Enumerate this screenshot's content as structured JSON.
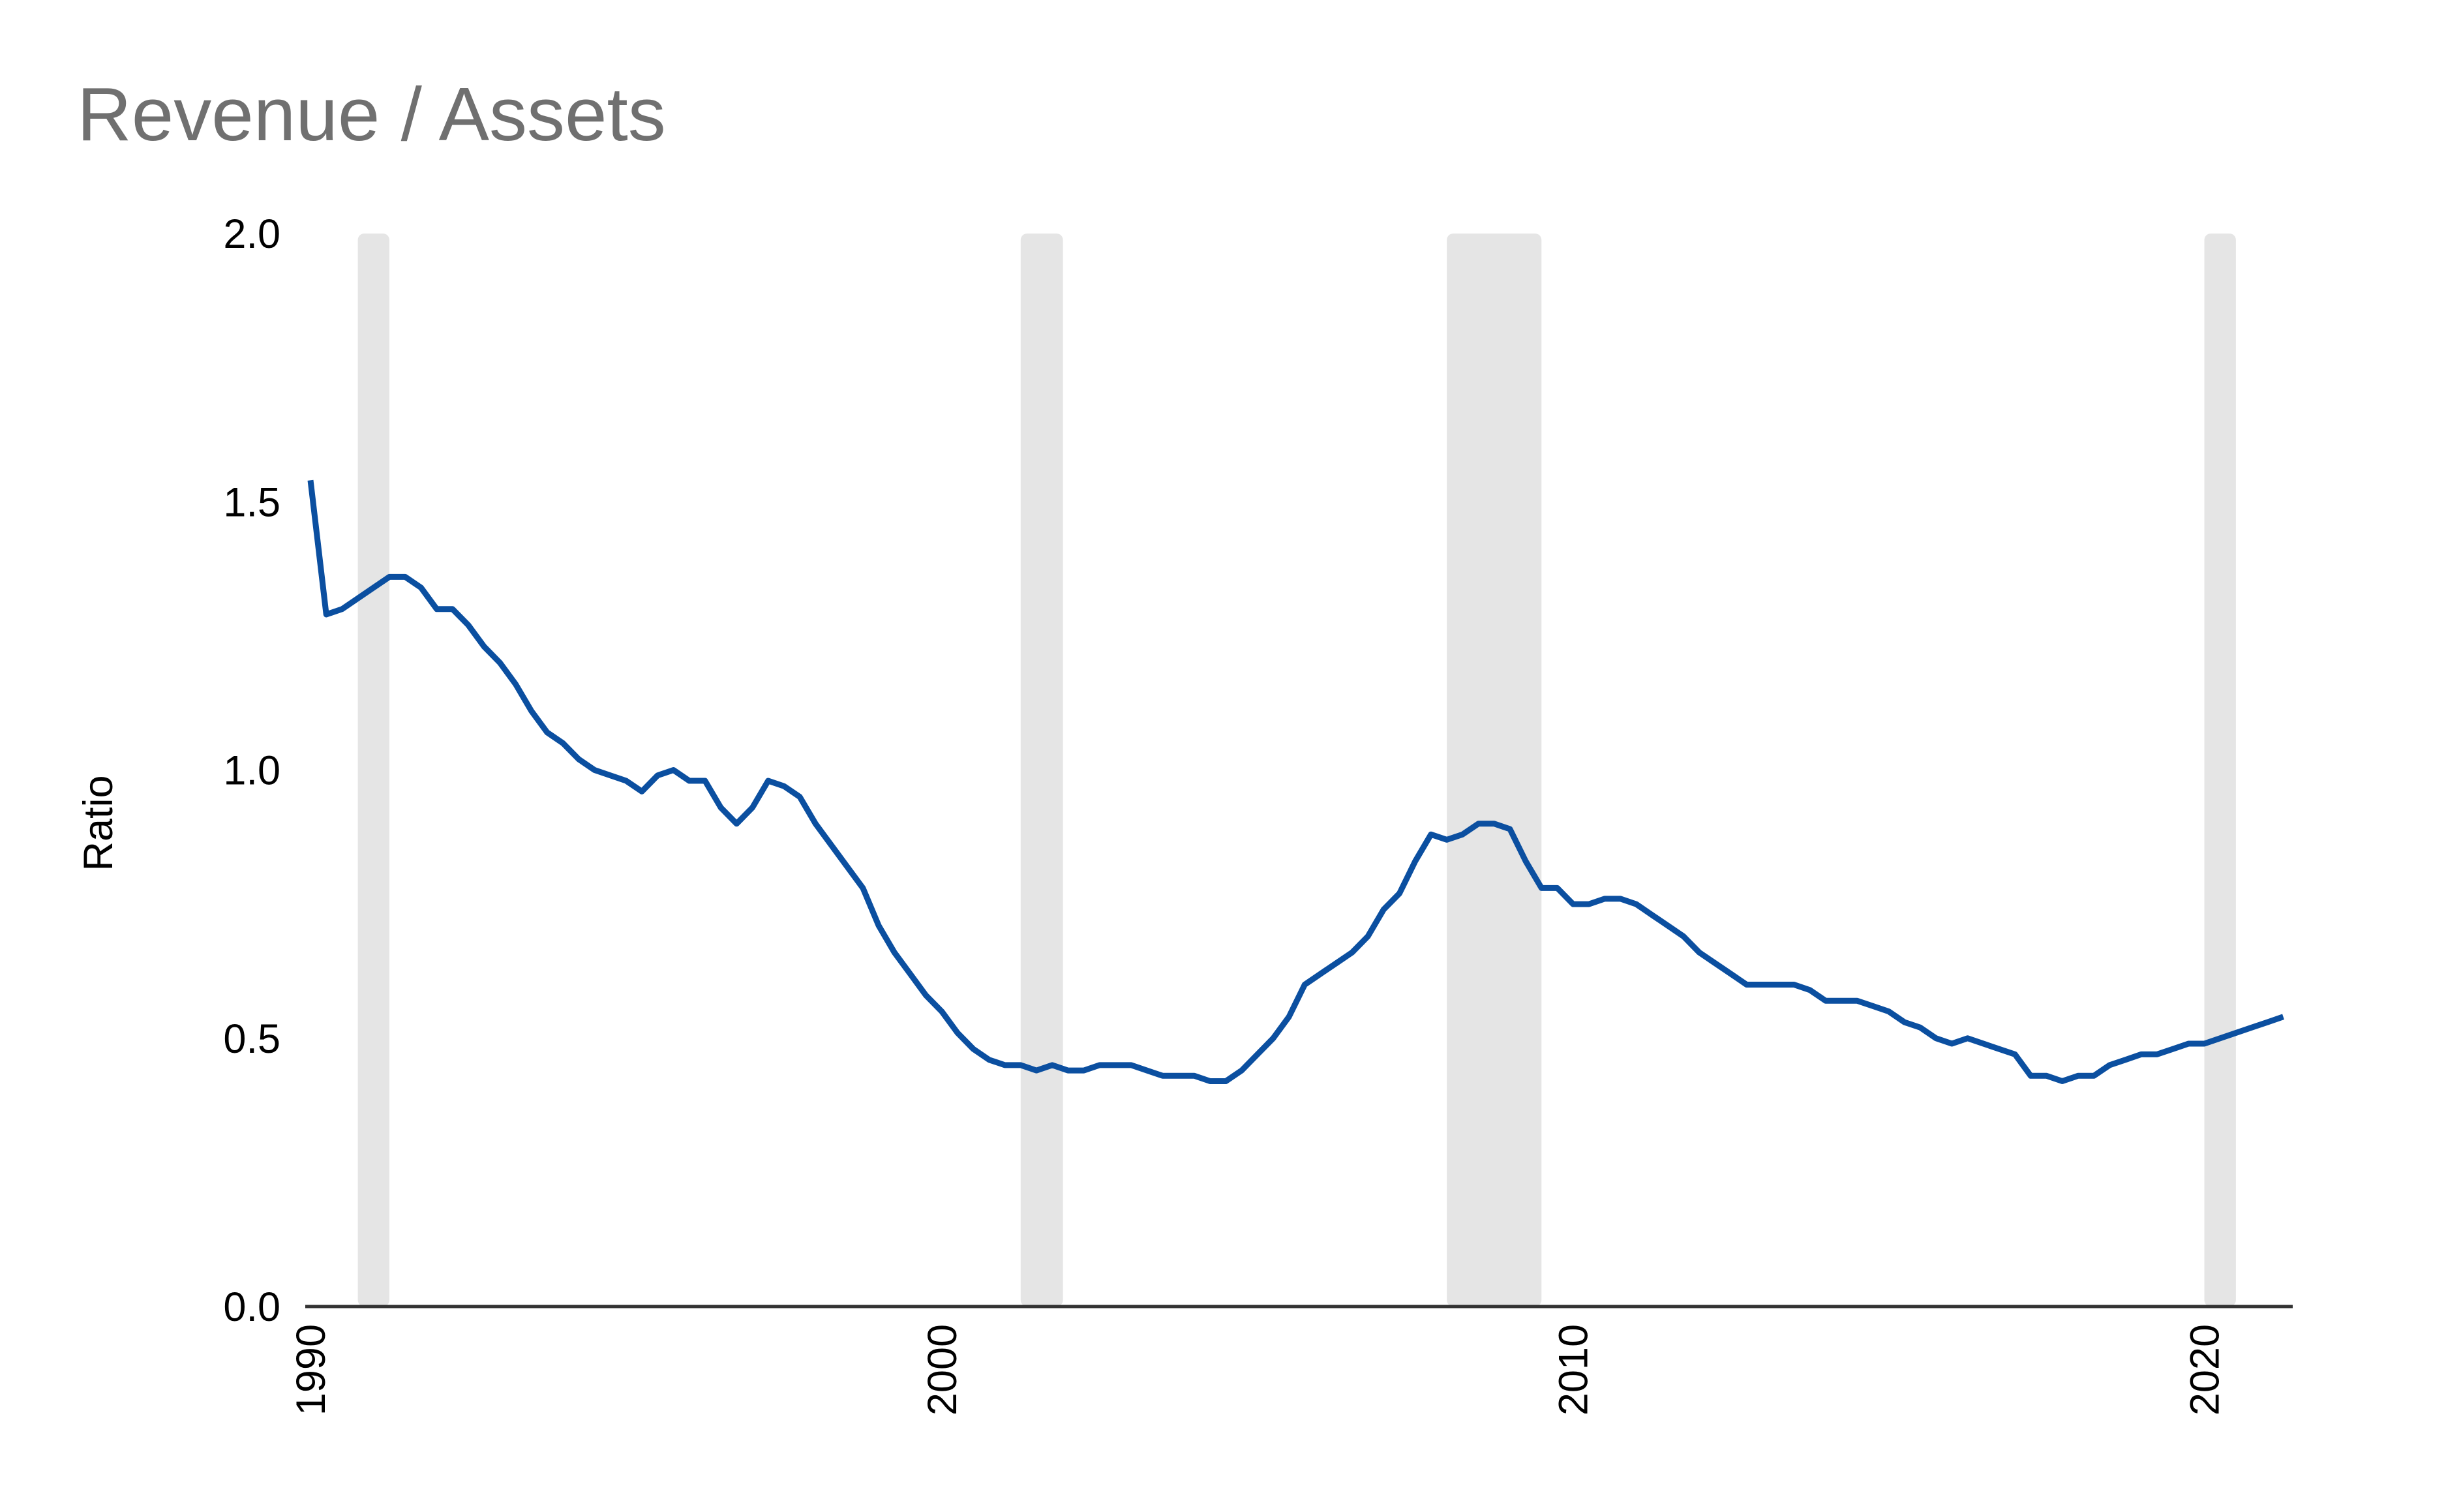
{
  "chart_data": {
    "type": "line",
    "title": "Revenue / Assets",
    "xlabel": "",
    "ylabel": "Ratio",
    "xlim": [
      1990.0,
      2021.4
    ],
    "ylim": [
      0.0,
      2.0
    ],
    "x_ticks": [
      1990,
      2000,
      2010,
      2020
    ],
    "x_tick_labels": [
      "1990",
      "2000",
      "2010",
      "2020"
    ],
    "y_ticks": [
      0.0,
      0.5,
      1.0,
      1.5,
      2.0
    ],
    "y_tick_labels": [
      "0.0",
      "0.5",
      "1.0",
      "1.5",
      "2.0"
    ],
    "grid": false,
    "line_color": "#0b4fa0",
    "recession_color": "#e5e5e5",
    "recession_bands": [
      {
        "start": 1990.75,
        "end": 1991.25
      },
      {
        "start": 2001.25,
        "end": 2001.92
      },
      {
        "start": 2008.0,
        "end": 2009.5
      },
      {
        "start": 2020.0,
        "end": 2020.5
      }
    ],
    "series": [
      {
        "x": [
          1990.0,
          1990.25,
          1990.5,
          1990.75,
          1991.0,
          1991.25,
          1991.5,
          1991.75,
          1992.0,
          1992.25,
          1992.5,
          1992.75,
          1993.0,
          1993.25,
          1993.5,
          1993.75,
          1994.0,
          1994.25,
          1994.5,
          1994.75,
          1995.0,
          1995.25,
          1995.5,
          1995.75,
          1996.0,
          1996.25,
          1996.5,
          1996.75,
          1997.0,
          1997.25,
          1997.5,
          1997.75,
          1998.0,
          1998.25,
          1998.5,
          1998.75,
          1999.0,
          1999.25,
          1999.5,
          1999.75,
          2000.0,
          2000.25,
          2000.5,
          2000.75,
          2001.0,
          2001.25,
          2001.5,
          2001.75,
          2002.0,
          2002.25,
          2002.5,
          2002.75,
          2003.0,
          2003.25,
          2003.5,
          2003.75,
          2004.0,
          2004.25,
          2004.5,
          2004.75,
          2005.0,
          2005.25,
          2005.5,
          2005.75,
          2006.0,
          2006.25,
          2006.5,
          2006.75,
          2007.0,
          2007.25,
          2007.5,
          2007.75,
          2008.0,
          2008.25,
          2008.5,
          2008.75,
          2009.0,
          2009.25,
          2009.5,
          2009.75,
          2010.0,
          2010.25,
          2010.5,
          2010.75,
          2011.0,
          2011.25,
          2011.5,
          2011.75,
          2012.0,
          2012.25,
          2012.5,
          2012.75,
          2013.0,
          2013.25,
          2013.5,
          2013.75,
          2014.0,
          2014.25,
          2014.5,
          2014.75,
          2015.0,
          2015.25,
          2015.5,
          2015.75,
          2016.0,
          2016.25,
          2016.5,
          2016.75,
          2017.0,
          2017.25,
          2017.5,
          2017.75,
          2018.0,
          2018.25,
          2018.5,
          2018.75,
          2019.0,
          2019.25,
          2019.5,
          2019.75,
          2020.0,
          2020.25,
          2020.5,
          2020.75,
          2021.0,
          2021.25
        ],
        "y": [
          1.54,
          1.29,
          1.3,
          1.32,
          1.34,
          1.36,
          1.36,
          1.34,
          1.3,
          1.3,
          1.27,
          1.23,
          1.2,
          1.16,
          1.11,
          1.07,
          1.05,
          1.02,
          1.0,
          0.99,
          0.98,
          0.96,
          0.99,
          1.0,
          0.98,
          0.98,
          0.93,
          0.9,
          0.93,
          0.98,
          0.97,
          0.95,
          0.9,
          0.86,
          0.82,
          0.78,
          0.71,
          0.66,
          0.62,
          0.58,
          0.55,
          0.51,
          0.48,
          0.46,
          0.45,
          0.45,
          0.44,
          0.45,
          0.44,
          0.44,
          0.45,
          0.45,
          0.45,
          0.44,
          0.43,
          0.43,
          0.43,
          0.42,
          0.42,
          0.44,
          0.47,
          0.5,
          0.54,
          0.6,
          0.62,
          0.64,
          0.66,
          0.69,
          0.74,
          0.77,
          0.83,
          0.88,
          0.87,
          0.88,
          0.9,
          0.9,
          0.89,
          0.83,
          0.78,
          0.78,
          0.75,
          0.75,
          0.76,
          0.76,
          0.75,
          0.73,
          0.71,
          0.69,
          0.66,
          0.64,
          0.62,
          0.6,
          0.6,
          0.6,
          0.6,
          0.59,
          0.57,
          0.57,
          0.57,
          0.56,
          0.55,
          0.53,
          0.52,
          0.5,
          0.49,
          0.5,
          0.49,
          0.48,
          0.47,
          0.43,
          0.43,
          0.42,
          0.43,
          0.43,
          0.45,
          0.46,
          0.47,
          0.47,
          0.48,
          0.49,
          0.49,
          0.5,
          0.51,
          0.52,
          0.53,
          0.54
        ]
      }
    ]
  }
}
